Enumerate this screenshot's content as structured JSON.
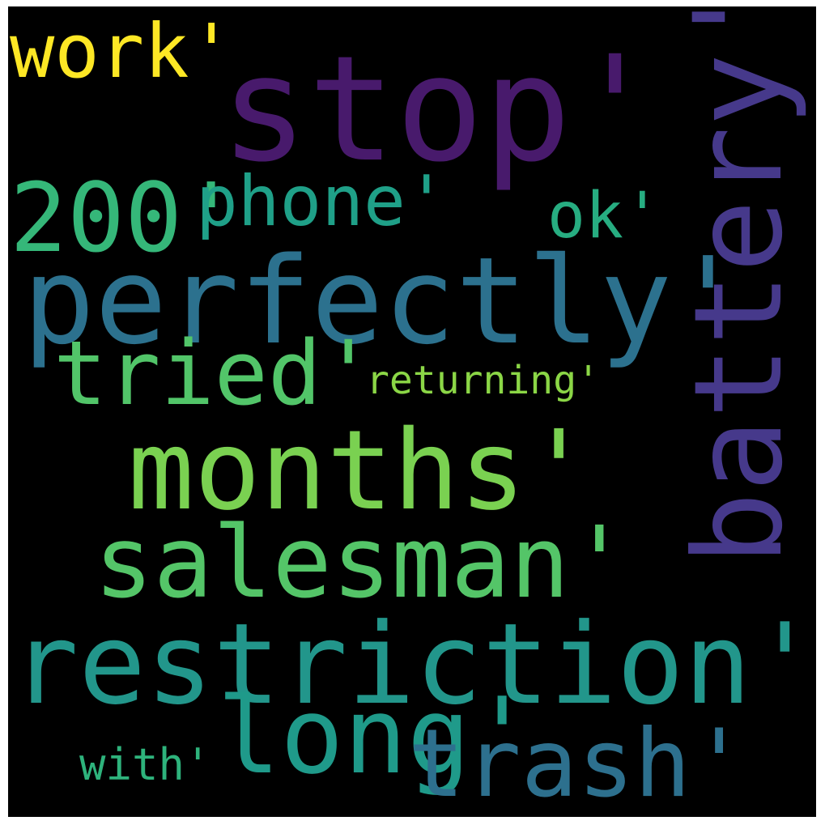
{
  "words": {
    "stop": {
      "text": "stop'",
      "color": "#481A6C"
    },
    "work": {
      "text": "work'",
      "color": "#FDE725"
    },
    "battery": {
      "text": "battery'",
      "color": "#46398B"
    },
    "two_hundred": {
      "text": "200'",
      "color": "#35B779"
    },
    "phone": {
      "text": "phone'",
      "color": "#1FA088"
    },
    "ok": {
      "text": "ok'",
      "color": "#27AD81"
    },
    "perfectly": {
      "text": "perfectly'",
      "color": "#2C718E"
    },
    "tried": {
      "text": "tried'",
      "color": "#52C569"
    },
    "returning": {
      "text": "returning'",
      "color": "#8BD646"
    },
    "months": {
      "text": "months'",
      "color": "#7AD151"
    },
    "salesman": {
      "text": "salesman'",
      "color": "#54C568"
    },
    "restriction": {
      "text": "restriction'",
      "color": "#22968B"
    },
    "long": {
      "text": "long'",
      "color": "#1F9A8A"
    },
    "trash": {
      "text": "trash'",
      "color": "#2D708E"
    },
    "with": {
      "text": "with'",
      "color": "#2EB37C"
    }
  }
}
